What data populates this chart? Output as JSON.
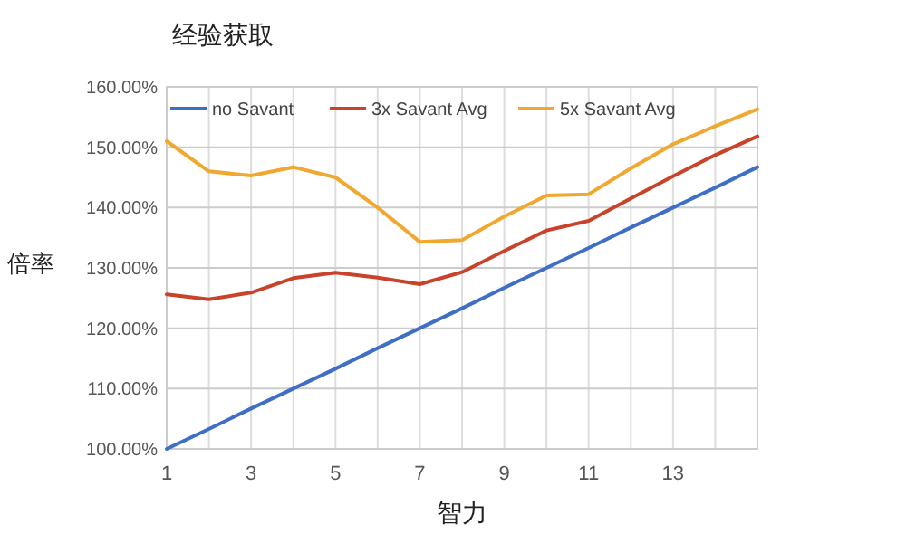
{
  "chart_data": {
    "type": "line",
    "title": "经验获取",
    "xlabel": "智力",
    "ylabel": "倍率",
    "x": [
      1,
      2,
      3,
      4,
      5,
      6,
      7,
      8,
      9,
      10,
      11,
      12,
      13,
      14,
      15
    ],
    "series": [
      {
        "name": "no Savant",
        "color": "#3f6fc4",
        "values": [
          100,
          103.3,
          106.7,
          110,
          113.3,
          116.7,
          120,
          123.3,
          126.7,
          130,
          133.3,
          136.7,
          140,
          143.3,
          146.7
        ]
      },
      {
        "name": "3x Savant Avg",
        "color": "#c8432a",
        "values": [
          125.6,
          124.8,
          125.9,
          128.3,
          129.2,
          128.4,
          127.3,
          129.3,
          132.8,
          136.2,
          137.8,
          141.5,
          145.2,
          148.7,
          151.8
        ]
      },
      {
        "name": "5x Savant Avg",
        "color": "#f0a830",
        "values": [
          151,
          146,
          145.3,
          146.7,
          145,
          140,
          134.3,
          134.6,
          138.5,
          142,
          142.2,
          146.5,
          150.5,
          153.5,
          156.3
        ]
      }
    ],
    "xlim": [
      1,
      15
    ],
    "xticks": [
      1,
      {
        "value": 2,
        "label": null
      },
      3,
      {
        "value": 4,
        "label": null
      },
      5,
      {
        "value": 6,
        "label": null
      },
      7,
      {
        "value": 8,
        "label": null
      },
      9,
      {
        "value": 10,
        "label": null
      },
      11,
      {
        "value": 12,
        "label": null
      },
      13,
      {
        "value": 14,
        "label": null
      },
      {
        "value": 15,
        "label": null
      }
    ],
    "ylim": [
      100,
      160
    ],
    "yticks": [
      {
        "value": 100,
        "label": "100.00%"
      },
      {
        "value": 110,
        "label": "110.00%"
      },
      {
        "value": 120,
        "label": "120.00%"
      },
      {
        "value": 130,
        "label": "130.00%"
      },
      {
        "value": 140,
        "label": "140.00%"
      },
      {
        "value": 150,
        "label": "150.00%"
      },
      {
        "value": 160,
        "label": "160.00%"
      }
    ],
    "grid": true,
    "legend": "top",
    "marker": "none",
    "line_style": "solid"
  }
}
